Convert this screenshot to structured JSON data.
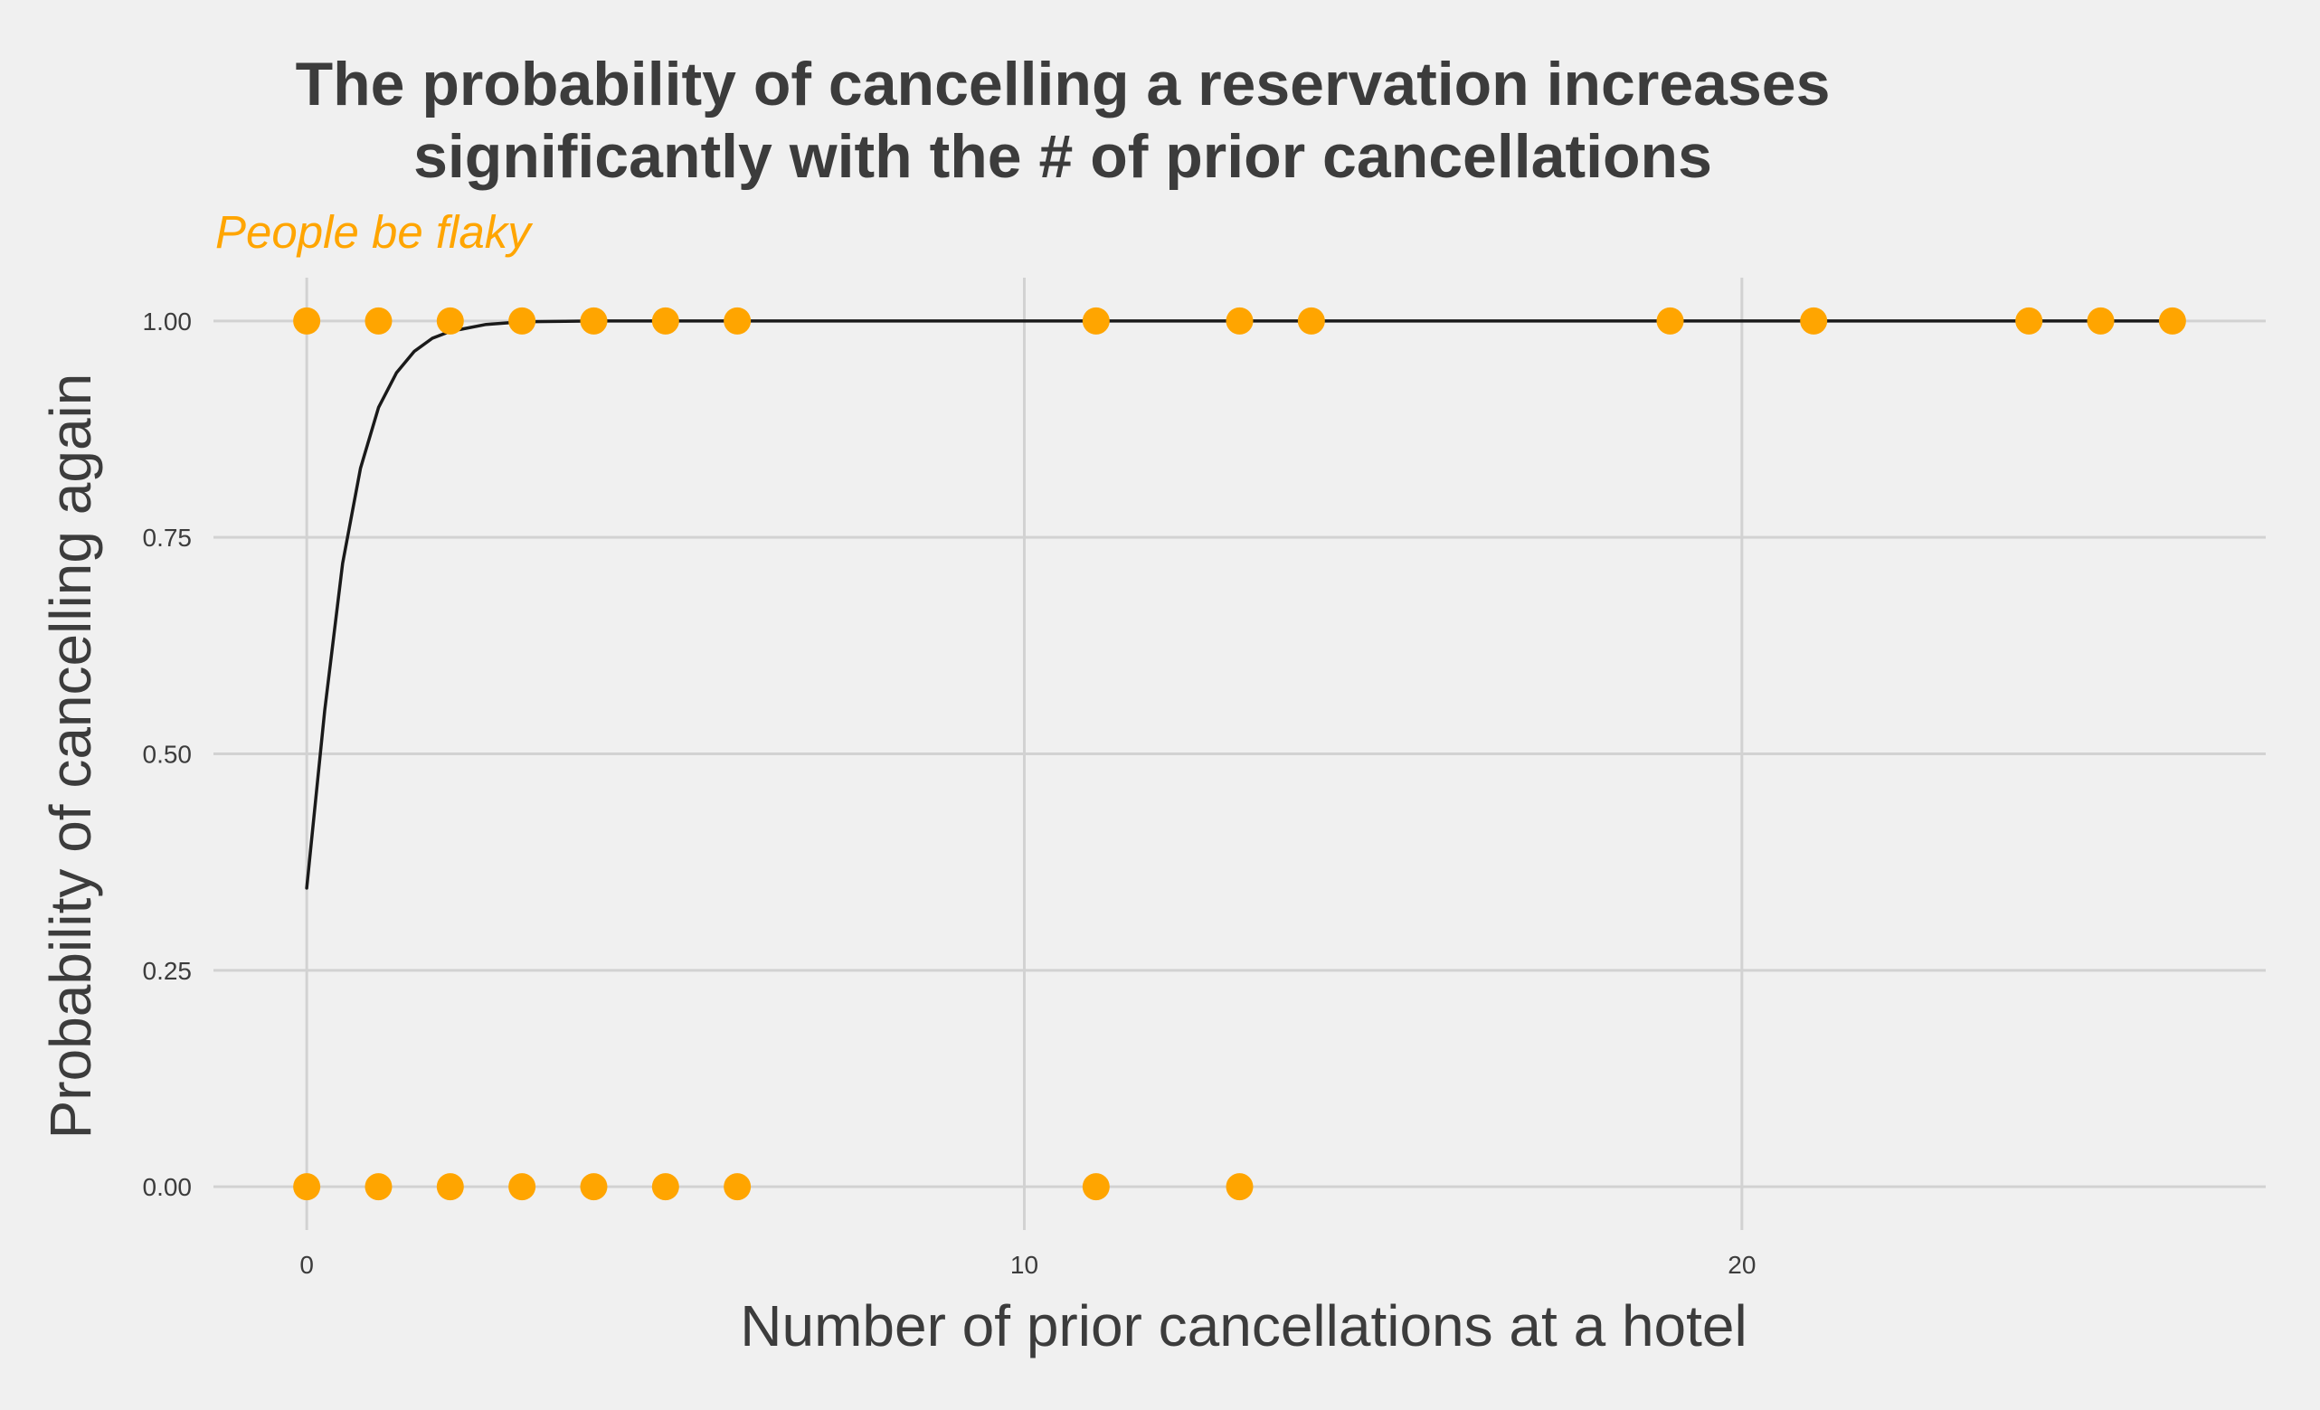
{
  "chart_data": {
    "type": "scatter",
    "title": [
      "The probability of cancelling a reservation increases",
      "significantly with the # of prior cancellations"
    ],
    "subtitle": "People be flaky",
    "xlabel": "Number of prior cancellations at a hotel",
    "ylabel": "Probability of cancelling again",
    "xlim": [
      -1.3,
      27.3
    ],
    "ylim": [
      -0.05,
      1.05
    ],
    "x_ticks": [
      0,
      10,
      20
    ],
    "x_tick_labels": [
      "0",
      "10",
      "20"
    ],
    "y_ticks": [
      0,
      0.25,
      0.5,
      0.75,
      1
    ],
    "y_tick_labels": [
      "0.00",
      "0.25",
      "0.50",
      "0.75",
      "1.00"
    ],
    "grid": true,
    "point_color": "#ffa500",
    "line_color": "#1a1a1a",
    "series": [
      {
        "type": "scatter",
        "points": [
          {
            "x": 0,
            "y": 1
          },
          {
            "x": 1,
            "y": 1
          },
          {
            "x": 2,
            "y": 1
          },
          {
            "x": 3,
            "y": 1
          },
          {
            "x": 4,
            "y": 1
          },
          {
            "x": 5,
            "y": 1
          },
          {
            "x": 6,
            "y": 1
          },
          {
            "x": 11,
            "y": 1
          },
          {
            "x": 13,
            "y": 1
          },
          {
            "x": 14,
            "y": 1
          },
          {
            "x": 19,
            "y": 1
          },
          {
            "x": 21,
            "y": 1
          },
          {
            "x": 24,
            "y": 1
          },
          {
            "x": 25,
            "y": 1
          },
          {
            "x": 26,
            "y": 1
          },
          {
            "x": 0,
            "y": 0
          },
          {
            "x": 1,
            "y": 0
          },
          {
            "x": 2,
            "y": 0
          },
          {
            "x": 3,
            "y": 0
          },
          {
            "x": 4,
            "y": 0
          },
          {
            "x": 5,
            "y": 0
          },
          {
            "x": 6,
            "y": 0
          },
          {
            "x": 11,
            "y": 0
          },
          {
            "x": 13,
            "y": 0
          }
        ]
      },
      {
        "type": "line",
        "points": [
          {
            "x": 0,
            "y": 0.345
          },
          {
            "x": 0.25,
            "y": 0.55
          },
          {
            "x": 0.5,
            "y": 0.72
          },
          {
            "x": 0.75,
            "y": 0.83
          },
          {
            "x": 1,
            "y": 0.9
          },
          {
            "x": 1.25,
            "y": 0.94
          },
          {
            "x": 1.5,
            "y": 0.965
          },
          {
            "x": 1.75,
            "y": 0.98
          },
          {
            "x": 2,
            "y": 0.988
          },
          {
            "x": 2.5,
            "y": 0.996
          },
          {
            "x": 3,
            "y": 0.999
          },
          {
            "x": 4,
            "y": 1
          },
          {
            "x": 26,
            "y": 1
          }
        ]
      }
    ]
  }
}
